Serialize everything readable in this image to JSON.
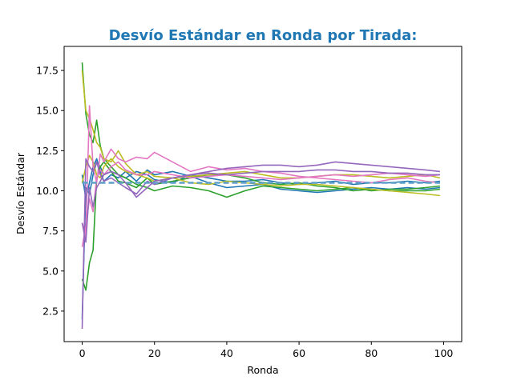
{
  "chart_data": {
    "type": "line",
    "title": "Desvío Estándar en Ronda por Tirada:",
    "title_color": "#1f77b4",
    "xlabel": "Ronda",
    "ylabel": "Desvío Estándar",
    "xlim": [
      -5,
      105
    ],
    "ylim": [
      0.6,
      19.0
    ],
    "xticks": [
      0,
      20,
      40,
      60,
      80,
      100
    ],
    "xtick_labels": [
      "0",
      "20",
      "40",
      "60",
      "80",
      "100"
    ],
    "yticks": [
      2.5,
      5.0,
      7.5,
      10.0,
      12.5,
      15.0,
      17.5
    ],
    "ytick_labels": [
      "2.5",
      "5.0",
      "7.5",
      "10.0",
      "12.5",
      "15.0",
      "17.5"
    ],
    "grid": false,
    "legend": "none",
    "reference_line": {
      "y": 10.5,
      "style": "dashed",
      "color": "#5f9fc9"
    },
    "x": [
      0,
      1,
      2,
      3,
      4,
      5,
      6,
      8,
      10,
      12,
      15,
      18,
      20,
      25,
      30,
      35,
      40,
      45,
      50,
      55,
      60,
      65,
      70,
      75,
      80,
      85,
      90,
      95,
      99
    ],
    "series": [
      {
        "color": "#1f77b4",
        "values": [
          11.0,
          9.5,
          10.5,
          11.5,
          12.0,
          11.2,
          10.6,
          11.0,
          10.8,
          11.2,
          10.6,
          11.3,
          11.0,
          11.2,
          10.9,
          10.5,
          10.2,
          10.3,
          10.4,
          10.1,
          10.0,
          9.9,
          10.0,
          10.1,
          10.2,
          10.1,
          10.2,
          10.1,
          10.2
        ]
      },
      {
        "color": "#1f77b4",
        "values": [
          2.0,
          10.2,
          9.8,
          11.0,
          11.8,
          11.5,
          11.0,
          11.2,
          11.0,
          10.8,
          11.2,
          11.0,
          10.7,
          10.5,
          11.0,
          10.8,
          10.6,
          10.6,
          10.7,
          10.5,
          10.4,
          10.5,
          10.6,
          10.4,
          10.5,
          10.5,
          10.6,
          10.5,
          10.6
        ]
      },
      {
        "color": "#2ca02c",
        "values": [
          18.0,
          14.8,
          13.5,
          13.0,
          14.4,
          12.8,
          12.0,
          11.5,
          11.0,
          10.8,
          10.4,
          10.2,
          10.0,
          10.3,
          10.2,
          10.0,
          9.6,
          10.0,
          10.3,
          10.2,
          10.1,
          10.0,
          10.1,
          10.2,
          10.0,
          10.1,
          10.1,
          10.2,
          10.3
        ]
      },
      {
        "color": "#2ca02c",
        "values": [
          4.5,
          3.8,
          5.5,
          6.3,
          10.8,
          11.5,
          11.8,
          11.2,
          10.6,
          10.5,
          10.2,
          10.8,
          10.4,
          10.6,
          10.8,
          11.0,
          11.0,
          10.8,
          10.5,
          10.4,
          10.5,
          10.3,
          10.2,
          10.0,
          10.1,
          10.0,
          10.0,
          10.0,
          10.1
        ]
      },
      {
        "color": "#bcbd22",
        "values": [
          17.5,
          15.0,
          14.5,
          13.8,
          13.0,
          12.7,
          12.0,
          11.8,
          12.5,
          11.7,
          11.0,
          10.8,
          10.6,
          10.8,
          10.5,
          10.4,
          10.6,
          10.5,
          10.4,
          10.3,
          10.4,
          10.4,
          10.3,
          10.2,
          10.1,
          10.0,
          9.9,
          9.8,
          9.7
        ]
      },
      {
        "color": "#bcbd22",
        "values": [
          10.5,
          11.5,
          12.2,
          11.8,
          11.0,
          10.8,
          11.5,
          12.0,
          11.5,
          11.2,
          11.0,
          11.2,
          10.9,
          10.8,
          10.9,
          11.0,
          11.1,
          11.2,
          11.0,
          10.8,
          10.8,
          10.9,
          11.0,
          11.0,
          10.9,
          10.8,
          10.9,
          11.0,
          10.8
        ]
      },
      {
        "color": "#e377c2",
        "values": [
          8.0,
          7.2,
          15.3,
          11.5,
          10.5,
          12.3,
          11.8,
          12.6,
          12.0,
          11.8,
          12.1,
          12.0,
          12.4,
          11.8,
          11.2,
          11.5,
          11.3,
          11.4,
          11.2,
          11.1,
          10.9,
          10.8,
          10.7,
          10.6,
          10.5,
          10.7,
          10.8,
          10.6,
          10.5
        ]
      },
      {
        "color": "#e377c2",
        "values": [
          6.5,
          7.8,
          9.5,
          8.7,
          10.8,
          11.3,
          11.0,
          11.5,
          11.8,
          11.3,
          11.0,
          11.0,
          11.2,
          11.0,
          10.8,
          10.9,
          11.0,
          10.9,
          10.8,
          10.7,
          10.8,
          10.9,
          11.0,
          10.9,
          11.0,
          11.1,
          11.0,
          10.9,
          11.0
        ]
      },
      {
        "color": "#9467bd",
        "values": [
          1.4,
          12.0,
          11.5,
          11.2,
          11.8,
          11.0,
          10.6,
          10.8,
          10.5,
          10.2,
          9.8,
          10.6,
          10.4,
          10.8,
          11.0,
          11.2,
          11.4,
          11.5,
          11.6,
          11.6,
          11.5,
          11.6,
          11.8,
          11.7,
          11.6,
          11.5,
          11.4,
          11.3,
          11.2
        ]
      },
      {
        "color": "#9467bd",
        "values": [
          8.0,
          6.8,
          10.2,
          9.0,
          10.2,
          10.6,
          11.0,
          11.2,
          11.0,
          10.5,
          9.6,
          10.2,
          10.6,
          10.8,
          11.0,
          11.1,
          11.0,
          11.1,
          11.2,
          11.2,
          11.2,
          11.3,
          11.3,
          11.2,
          11.2,
          11.1,
          11.1,
          11.0,
          11.0
        ]
      }
    ]
  }
}
